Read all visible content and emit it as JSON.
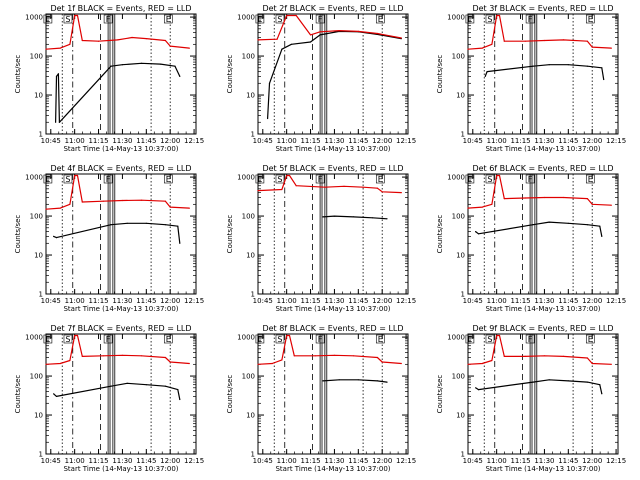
{
  "figure": {
    "xlabel": "Start Time (14-May-13 10:37:00)",
    "ylabel": "Counts/sec",
    "x_tick_labels": [
      "10:45",
      "11:00",
      "11:15",
      "11:30",
      "11:45",
      "12:00",
      "12:15"
    ],
    "y_tick_labels": [
      "1",
      "10",
      "100",
      "1000"
    ],
    "colors": {
      "events": "#000000",
      "lld": "#e00000"
    }
  },
  "chart_data": [
    {
      "type": "line",
      "title": "Det 1f BLACK = Events, RED = LLD",
      "x_minutes_range": [
        10.7,
        12.27
      ],
      "ylim": [
        1,
        1200
      ],
      "yscale": "log",
      "flags": [
        {
          "x": 10.72,
          "label": "E"
        },
        {
          "x": 10.93,
          "label": "S"
        },
        {
          "x": 11.35,
          "label": "F"
        },
        {
          "x": 11.98,
          "label": "E"
        }
      ],
      "series": [
        {
          "name": "Events",
          "color": "#000000",
          "points": [
            [
              10.8,
              2
            ],
            [
              10.81,
              30
            ],
            [
              10.83,
              35
            ],
            [
              10.84,
              2
            ],
            [
              11.38,
              55
            ],
            [
              11.5,
              60
            ],
            [
              11.7,
              65
            ],
            [
              11.9,
              62
            ],
            [
              12.05,
              55
            ],
            [
              12.1,
              30
            ]
          ]
        },
        {
          "name": "LLD",
          "color": "#e00000",
          "points": [
            [
              10.7,
              150
            ],
            [
              10.85,
              160
            ],
            [
              10.95,
              200
            ],
            [
              11.0,
              1100
            ],
            [
              11.03,
              1100
            ],
            [
              11.08,
              250
            ],
            [
              11.25,
              240
            ],
            [
              11.45,
              260
            ],
            [
              11.6,
              300
            ],
            [
              11.75,
              280
            ],
            [
              11.95,
              250
            ],
            [
              12.0,
              180
            ],
            [
              12.2,
              160
            ]
          ]
        }
      ]
    },
    {
      "type": "line",
      "title": "Det 2f BLACK = Events, RED = LLD",
      "x_minutes_range": [
        10.7,
        12.27
      ],
      "ylim": [
        1,
        1200
      ],
      "yscale": "log",
      "flags": [
        {
          "x": 10.72,
          "label": "E"
        },
        {
          "x": 10.93,
          "label": "S"
        },
        {
          "x": 11.35,
          "label": "F"
        },
        {
          "x": 11.98,
          "label": "E"
        }
      ],
      "series": [
        {
          "name": "Events",
          "color": "#000000",
          "points": [
            [
              10.8,
              2.5
            ],
            [
              10.82,
              20
            ],
            [
              10.95,
              150
            ],
            [
              11.05,
              200
            ],
            [
              11.25,
              230
            ],
            [
              11.35,
              350
            ],
            [
              11.55,
              430
            ],
            [
              11.75,
              420
            ],
            [
              11.95,
              360
            ],
            [
              12.2,
              280
            ]
          ]
        },
        {
          "name": "LLD",
          "color": "#e00000",
          "points": [
            [
              10.7,
              260
            ],
            [
              10.9,
              270
            ],
            [
              11.0,
              1100
            ],
            [
              11.1,
              1100
            ],
            [
              11.25,
              350
            ],
            [
              11.35,
              420
            ],
            [
              11.55,
              450
            ],
            [
              11.75,
              430
            ],
            [
              11.95,
              380
            ],
            [
              12.2,
              290
            ]
          ]
        }
      ]
    },
    {
      "type": "line",
      "title": "Det 3f BLACK = Events, RED = LLD",
      "x_minutes_range": [
        10.7,
        12.27
      ],
      "ylim": [
        1,
        1200
      ],
      "yscale": "log",
      "flags": [
        {
          "x": 10.72,
          "label": "E"
        },
        {
          "x": 10.93,
          "label": "S"
        },
        {
          "x": 11.35,
          "label": "F"
        },
        {
          "x": 11.98,
          "label": "E"
        }
      ],
      "series": [
        {
          "name": "Events",
          "color": "#000000",
          "points": [
            [
              10.88,
              30
            ],
            [
              10.9,
              40
            ],
            [
              11.38,
              55
            ],
            [
              11.55,
              60
            ],
            [
              11.75,
              60
            ],
            [
              11.95,
              55
            ],
            [
              12.1,
              50
            ],
            [
              12.12,
              25
            ]
          ]
        },
        {
          "name": "LLD",
          "color": "#e00000",
          "points": [
            [
              10.7,
              150
            ],
            [
              10.85,
              160
            ],
            [
              10.95,
              200
            ],
            [
              11.0,
              1100
            ],
            [
              11.03,
              1100
            ],
            [
              11.08,
              240
            ],
            [
              11.3,
              240
            ],
            [
              11.5,
              250
            ],
            [
              11.7,
              260
            ],
            [
              11.95,
              240
            ],
            [
              12.0,
              170
            ],
            [
              12.2,
              160
            ]
          ]
        }
      ]
    },
    {
      "type": "line",
      "title": "Det 4f BLACK = Events, RED = LLD",
      "x_minutes_range": [
        10.7,
        12.27
      ],
      "ylim": [
        1,
        1200
      ],
      "yscale": "log",
      "flags": [
        {
          "x": 10.72,
          "label": "E"
        },
        {
          "x": 10.93,
          "label": "S"
        },
        {
          "x": 11.35,
          "label": "F"
        },
        {
          "x": 11.98,
          "label": "E"
        }
      ],
      "series": [
        {
          "name": "Events",
          "color": "#000000",
          "points": [
            [
              10.78,
              30
            ],
            [
              10.81,
              28
            ],
            [
              11.38,
              60
            ],
            [
              11.55,
              65
            ],
            [
              11.75,
              65
            ],
            [
              11.95,
              60
            ],
            [
              12.08,
              55
            ],
            [
              12.1,
              20
            ]
          ]
        },
        {
          "name": "LLD",
          "color": "#e00000",
          "points": [
            [
              10.7,
              150
            ],
            [
              10.85,
              160
            ],
            [
              10.95,
              200
            ],
            [
              11.0,
              1100
            ],
            [
              11.03,
              1100
            ],
            [
              11.08,
              230
            ],
            [
              11.3,
              240
            ],
            [
              11.5,
              250
            ],
            [
              11.7,
              255
            ],
            [
              11.95,
              240
            ],
            [
              12.0,
              170
            ],
            [
              12.2,
              160
            ]
          ]
        }
      ]
    },
    {
      "type": "line",
      "title": "Det 5f BLACK = Events, RED = LLD",
      "x_minutes_range": [
        10.7,
        12.27
      ],
      "ylim": [
        1,
        1200
      ],
      "yscale": "log",
      "flags": [
        {
          "x": 10.72,
          "label": "E"
        },
        {
          "x": 10.93,
          "label": "S"
        },
        {
          "x": 11.35,
          "label": "F"
        },
        {
          "x": 11.98,
          "label": "E"
        }
      ],
      "series": [
        {
          "name": "Events",
          "color": "#000000",
          "points": [
            [
              11.38,
              95
            ],
            [
              11.5,
              100
            ],
            [
              11.7,
              95
            ],
            [
              11.9,
              90
            ],
            [
              12.05,
              85
            ]
          ]
        },
        {
          "name": "LLD",
          "color": "#e00000",
          "points": [
            [
              10.7,
              450
            ],
            [
              10.95,
              480
            ],
            [
              11.0,
              1100
            ],
            [
              11.03,
              1100
            ],
            [
              11.1,
              600
            ],
            [
              11.4,
              550
            ],
            [
              11.6,
              580
            ],
            [
              11.8,
              550
            ],
            [
              11.95,
              520
            ],
            [
              12.0,
              420
            ],
            [
              12.2,
              400
            ]
          ]
        }
      ]
    },
    {
      "type": "line",
      "title": "Det 6f BLACK = Events, RED = LLD",
      "x_minutes_range": [
        10.7,
        12.27
      ],
      "ylim": [
        1,
        1200
      ],
      "yscale": "log",
      "flags": [
        {
          "x": 10.72,
          "label": "E"
        },
        {
          "x": 10.93,
          "label": "S"
        },
        {
          "x": 11.35,
          "label": "F"
        },
        {
          "x": 11.98,
          "label": "E"
        }
      ],
      "series": [
        {
          "name": "Events",
          "color": "#000000",
          "points": [
            [
              10.78,
              40
            ],
            [
              10.81,
              35
            ],
            [
              11.38,
              60
            ],
            [
              11.55,
              70
            ],
            [
              11.75,
              65
            ],
            [
              11.95,
              60
            ],
            [
              12.08,
              55
            ],
            [
              12.1,
              30
            ]
          ]
        },
        {
          "name": "LLD",
          "color": "#e00000",
          "points": [
            [
              10.7,
              160
            ],
            [
              10.85,
              170
            ],
            [
              10.95,
              200
            ],
            [
              11.0,
              1100
            ],
            [
              11.03,
              1100
            ],
            [
              11.08,
              280
            ],
            [
              11.3,
              290
            ],
            [
              11.5,
              300
            ],
            [
              11.7,
              300
            ],
            [
              11.95,
              280
            ],
            [
              12.0,
              200
            ],
            [
              12.2,
              190
            ]
          ]
        }
      ]
    },
    {
      "type": "line",
      "title": "Det 7f BLACK = Events, RED = LLD",
      "x_minutes_range": [
        10.7,
        12.27
      ],
      "ylim": [
        1,
        1200
      ],
      "yscale": "log",
      "flags": [
        {
          "x": 10.72,
          "label": "E"
        },
        {
          "x": 10.93,
          "label": "S"
        },
        {
          "x": 11.35,
          "label": "F"
        },
        {
          "x": 11.98,
          "label": "E"
        }
      ],
      "series": [
        {
          "name": "Events",
          "color": "#000000",
          "points": [
            [
              10.78,
              35
            ],
            [
              10.81,
              30
            ],
            [
              11.38,
              55
            ],
            [
              11.55,
              65
            ],
            [
              11.75,
              60
            ],
            [
              11.95,
              55
            ],
            [
              12.08,
              45
            ],
            [
              12.1,
              25
            ]
          ]
        },
        {
          "name": "LLD",
          "color": "#e00000",
          "points": [
            [
              10.7,
              200
            ],
            [
              10.85,
              210
            ],
            [
              10.95,
              250
            ],
            [
              11.0,
              1100
            ],
            [
              11.03,
              1100
            ],
            [
              11.08,
              320
            ],
            [
              11.3,
              330
            ],
            [
              11.5,
              340
            ],
            [
              11.7,
              330
            ],
            [
              11.95,
              300
            ],
            [
              12.0,
              230
            ],
            [
              12.2,
              210
            ]
          ]
        }
      ]
    },
    {
      "type": "line",
      "title": "Det 8f BLACK = Events, RED = LLD",
      "x_minutes_range": [
        10.7,
        12.27
      ],
      "ylim": [
        1,
        1200
      ],
      "yscale": "log",
      "flags": [
        {
          "x": 10.72,
          "label": "E"
        },
        {
          "x": 10.93,
          "label": "S"
        },
        {
          "x": 11.35,
          "label": "F"
        },
        {
          "x": 11.98,
          "label": "E"
        }
      ],
      "series": [
        {
          "name": "Events",
          "color": "#000000",
          "points": [
            [
              11.38,
              75
            ],
            [
              11.55,
              80
            ],
            [
              11.75,
              80
            ],
            [
              11.95,
              75
            ],
            [
              12.05,
              70
            ]
          ]
        },
        {
          "name": "LLD",
          "color": "#e00000",
          "points": [
            [
              10.7,
              200
            ],
            [
              10.85,
              210
            ],
            [
              10.95,
              260
            ],
            [
              11.0,
              1100
            ],
            [
              11.03,
              1100
            ],
            [
              11.08,
              330
            ],
            [
              11.3,
              330
            ],
            [
              11.5,
              340
            ],
            [
              11.7,
              330
            ],
            [
              11.95,
              300
            ],
            [
              12.0,
              230
            ],
            [
              12.2,
              210
            ]
          ]
        }
      ]
    },
    {
      "type": "line",
      "title": "Det 9f BLACK = Events, RED = LLD",
      "x_minutes_range": [
        10.7,
        12.27
      ],
      "ylim": [
        1,
        1200
      ],
      "yscale": "log",
      "flags": [
        {
          "x": 10.72,
          "label": "E"
        },
        {
          "x": 10.93,
          "label": "S"
        },
        {
          "x": 11.35,
          "label": "F"
        },
        {
          "x": 11.98,
          "label": "E"
        }
      ],
      "series": [
        {
          "name": "Events",
          "color": "#000000",
          "points": [
            [
              10.78,
              50
            ],
            [
              10.81,
              45
            ],
            [
              11.38,
              70
            ],
            [
              11.55,
              80
            ],
            [
              11.75,
              75
            ],
            [
              11.95,
              70
            ],
            [
              12.08,
              60
            ],
            [
              12.1,
              35
            ]
          ]
        },
        {
          "name": "LLD",
          "color": "#e00000",
          "points": [
            [
              10.7,
              200
            ],
            [
              10.85,
              210
            ],
            [
              10.95,
              250
            ],
            [
              11.0,
              1100
            ],
            [
              11.03,
              1100
            ],
            [
              11.08,
              320
            ],
            [
              11.3,
              320
            ],
            [
              11.5,
              330
            ],
            [
              11.7,
              320
            ],
            [
              11.95,
              290
            ],
            [
              12.0,
              210
            ],
            [
              12.2,
              200
            ]
          ]
        }
      ]
    }
  ]
}
